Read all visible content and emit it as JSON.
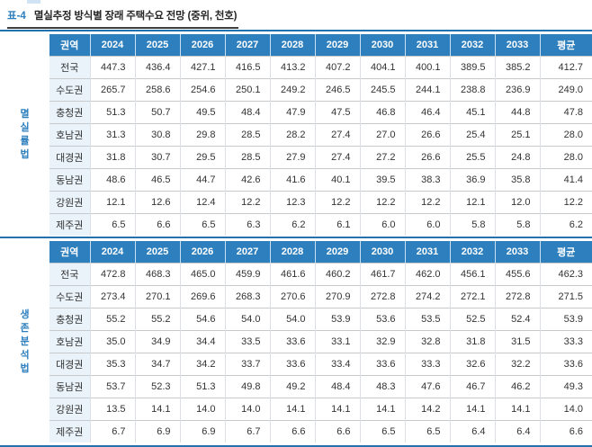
{
  "page": {
    "label": "표-4",
    "title": "멸실추정 방식별 장래 주택수요 전망 (중위, 천호)"
  },
  "colors": {
    "header_blue": "#2e7fbe",
    "rule_blue": "#2273ad",
    "region_bg": "#eaf3fa",
    "method_label_blue": "#2e7fbe"
  },
  "columns": [
    "권역",
    "2024",
    "2025",
    "2026",
    "2027",
    "2028",
    "2029",
    "2030",
    "2031",
    "2032",
    "2033",
    "평균"
  ],
  "tables": [
    {
      "method_label": "멸실률법",
      "rows": [
        {
          "region": "전국",
          "values": [
            "447.3",
            "436.4",
            "427.1",
            "416.5",
            "413.2",
            "407.2",
            "404.1",
            "400.1",
            "389.5",
            "385.2",
            "412.7"
          ]
        },
        {
          "region": "수도권",
          "values": [
            "265.7",
            "258.6",
            "254.6",
            "250.1",
            "249.2",
            "246.5",
            "245.5",
            "244.1",
            "238.8",
            "236.9",
            "249.0"
          ]
        },
        {
          "region": "충청권",
          "values": [
            "51.3",
            "50.7",
            "49.5",
            "48.4",
            "47.9",
            "47.5",
            "46.8",
            "46.4",
            "45.1",
            "44.8",
            "47.8"
          ]
        },
        {
          "region": "호남권",
          "values": [
            "31.3",
            "30.8",
            "29.8",
            "28.5",
            "28.2",
            "27.4",
            "27.0",
            "26.6",
            "25.4",
            "25.1",
            "28.0"
          ]
        },
        {
          "region": "대경권",
          "values": [
            "31.8",
            "30.7",
            "29.5",
            "28.5",
            "27.9",
            "27.4",
            "27.2",
            "26.6",
            "25.5",
            "24.8",
            "28.0"
          ]
        },
        {
          "region": "동남권",
          "values": [
            "48.6",
            "46.5",
            "44.7",
            "42.6",
            "41.6",
            "40.1",
            "39.5",
            "38.3",
            "36.9",
            "35.8",
            "41.4"
          ]
        },
        {
          "region": "강원권",
          "values": [
            "12.1",
            "12.6",
            "12.4",
            "12.2",
            "12.3",
            "12.2",
            "12.2",
            "12.2",
            "12.1",
            "12.0",
            "12.2"
          ]
        },
        {
          "region": "제주권",
          "values": [
            "6.5",
            "6.6",
            "6.5",
            "6.3",
            "6.2",
            "6.1",
            "6.0",
            "6.0",
            "5.8",
            "5.8",
            "6.2"
          ]
        }
      ]
    },
    {
      "method_label": "생존분석법",
      "rows": [
        {
          "region": "전국",
          "values": [
            "472.8",
            "468.3",
            "465.0",
            "459.9",
            "461.6",
            "460.2",
            "461.7",
            "462.0",
            "456.1",
            "455.6",
            "462.3"
          ]
        },
        {
          "region": "수도권",
          "values": [
            "273.4",
            "270.1",
            "269.6",
            "268.3",
            "270.6",
            "270.9",
            "272.8",
            "274.2",
            "272.1",
            "272.8",
            "271.5"
          ]
        },
        {
          "region": "충청권",
          "values": [
            "55.2",
            "55.2",
            "54.6",
            "54.0",
            "54.0",
            "53.9",
            "53.6",
            "53.5",
            "52.5",
            "52.4",
            "53.9"
          ]
        },
        {
          "region": "호남권",
          "values": [
            "35.0",
            "34.9",
            "34.4",
            "33.5",
            "33.6",
            "33.1",
            "32.9",
            "32.8",
            "31.8",
            "31.5",
            "33.3"
          ]
        },
        {
          "region": "대경권",
          "values": [
            "35.3",
            "34.7",
            "34.2",
            "33.7",
            "33.6",
            "33.4",
            "33.6",
            "33.3",
            "32.6",
            "32.2",
            "33.6"
          ]
        },
        {
          "region": "동남권",
          "values": [
            "53.7",
            "52.3",
            "51.3",
            "49.8",
            "49.2",
            "48.4",
            "48.3",
            "47.6",
            "46.7",
            "46.2",
            "49.3"
          ]
        },
        {
          "region": "강원권",
          "values": [
            "13.5",
            "14.1",
            "14.0",
            "14.0",
            "14.1",
            "14.1",
            "14.1",
            "14.2",
            "14.1",
            "14.1",
            "14.0"
          ]
        },
        {
          "region": "제주권",
          "values": [
            "6.7",
            "6.9",
            "6.9",
            "6.7",
            "6.6",
            "6.6",
            "6.5",
            "6.5",
            "6.4",
            "6.4",
            "6.6"
          ]
        }
      ]
    }
  ]
}
